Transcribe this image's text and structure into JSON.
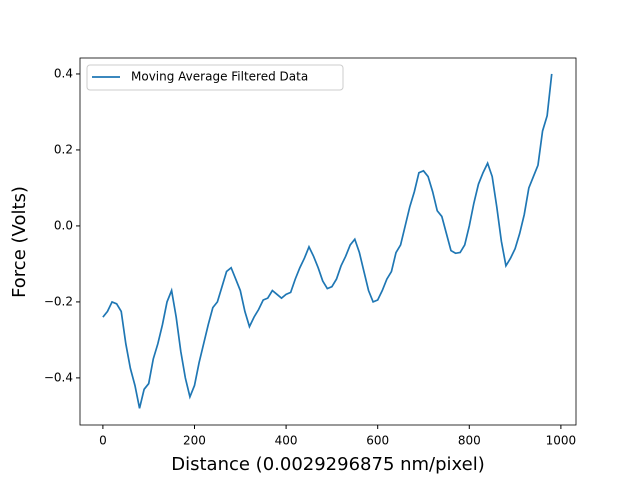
{
  "chart_data": {
    "type": "line",
    "x_label": "Distance (0.0029296875 nm/pixel)",
    "y_label": "Force (Volts)",
    "x": [
      0,
      10,
      20,
      30,
      40,
      50,
      60,
      70,
      80,
      90,
      100,
      110,
      120,
      130,
      140,
      150,
      160,
      170,
      180,
      190,
      200,
      210,
      220,
      230,
      240,
      250,
      260,
      270,
      280,
      290,
      300,
      310,
      320,
      330,
      340,
      350,
      360,
      370,
      380,
      390,
      400,
      410,
      420,
      430,
      440,
      450,
      460,
      470,
      480,
      490,
      500,
      510,
      520,
      530,
      540,
      550,
      560,
      570,
      580,
      590,
      600,
      610,
      620,
      630,
      640,
      650,
      660,
      670,
      680,
      690,
      700,
      710,
      720,
      730,
      740,
      750,
      760,
      770,
      780,
      790,
      800,
      810,
      820,
      830,
      840,
      850,
      860,
      870,
      880,
      890,
      900,
      910,
      920,
      930,
      940,
      950,
      960,
      970,
      980
    ],
    "series": [
      {
        "name": "Moving Average Filtered Data",
        "color": "#1f77b4",
        "values": [
          -0.24,
          -0.225,
          -0.2,
          -0.205,
          -0.225,
          -0.31,
          -0.375,
          -0.42,
          -0.48,
          -0.43,
          -0.415,
          -0.35,
          -0.31,
          -0.26,
          -0.2,
          -0.17,
          -0.24,
          -0.33,
          -0.4,
          -0.45,
          -0.42,
          -0.36,
          -0.31,
          -0.26,
          -0.215,
          -0.2,
          -0.16,
          -0.12,
          -0.11,
          -0.14,
          -0.17,
          -0.225,
          -0.265,
          -0.24,
          -0.22,
          -0.195,
          -0.19,
          -0.17,
          -0.18,
          -0.19,
          -0.18,
          -0.175,
          -0.14,
          -0.11,
          -0.085,
          -0.055,
          -0.08,
          -0.11,
          -0.145,
          -0.165,
          -0.16,
          -0.14,
          -0.105,
          -0.08,
          -0.05,
          -0.035,
          -0.07,
          -0.12,
          -0.17,
          -0.2,
          -0.195,
          -0.17,
          -0.14,
          -0.12,
          -0.07,
          -0.05,
          0.0,
          0.05,
          0.09,
          0.14,
          0.145,
          0.13,
          0.09,
          0.04,
          0.025,
          -0.02,
          -0.065,
          -0.072,
          -0.07,
          -0.05,
          0.0,
          0.06,
          0.11,
          0.14,
          0.165,
          0.13,
          0.05,
          -0.04,
          -0.105,
          -0.085,
          -0.06,
          -0.02,
          0.03,
          0.1,
          0.13,
          0.16,
          0.25,
          0.29,
          0.4
        ]
      }
    ],
    "xlim": [
      -50,
      1033
    ],
    "ylim": [
      -0.524,
      0.442
    ],
    "xticks": [
      0,
      200,
      400,
      600,
      800,
      1000
    ],
    "yticks": [
      {
        "value": -0.4,
        "label": "−0.4"
      },
      {
        "value": -0.2,
        "label": "−0.2"
      },
      {
        "value": 0.0,
        "label": "0.0"
      },
      {
        "value": 0.2,
        "label": "0.2"
      },
      {
        "value": 0.4,
        "label": "0.4"
      }
    ],
    "legend": "upper left",
    "grid": false
  }
}
